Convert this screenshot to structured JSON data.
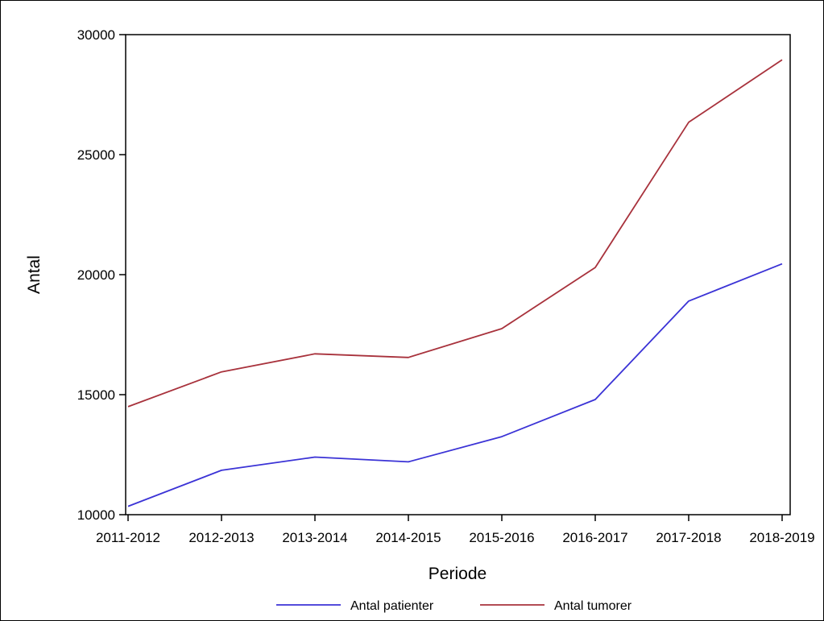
{
  "chart_data": {
    "type": "line",
    "xlabel": "Periode",
    "ylabel": "Antal",
    "categories": [
      "2011-2012",
      "2012-2013",
      "2013-2014",
      "2014-2015",
      "2015-2016",
      "2016-2017",
      "2017-2018",
      "2018-2019"
    ],
    "y_ticks": [
      10000,
      15000,
      20000,
      25000,
      30000
    ],
    "ylim": [
      10000,
      30000
    ],
    "grid": false,
    "legend_position": "bottom",
    "series": [
      {
        "name": "Antal patienter",
        "color": "#3b33d6",
        "values": [
          10350,
          11850,
          12400,
          12200,
          13250,
          14800,
          18900,
          20450
        ]
      },
      {
        "name": "Antal tumorer",
        "color": "#a8323c",
        "values": [
          14500,
          15950,
          16700,
          16550,
          17750,
          20300,
          26350,
          28950
        ]
      }
    ]
  }
}
